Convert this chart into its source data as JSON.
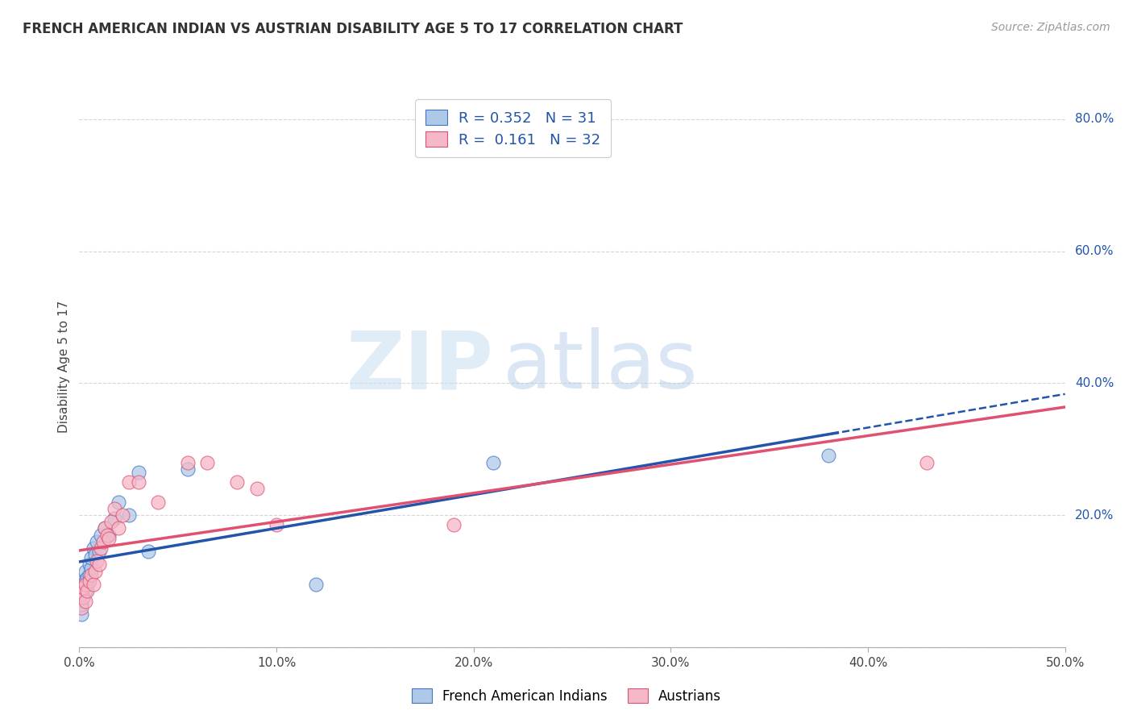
{
  "title": "FRENCH AMERICAN INDIAN VS AUSTRIAN DISABILITY AGE 5 TO 17 CORRELATION CHART",
  "source": "Source: ZipAtlas.com",
  "ylabel": "Disability Age 5 to 17",
  "xlim": [
    0.0,
    0.5
  ],
  "ylim": [
    0.0,
    0.85
  ],
  "xticks": [
    0.0,
    0.1,
    0.2,
    0.3,
    0.4,
    0.5
  ],
  "yticks": [
    0.0,
    0.2,
    0.4,
    0.6,
    0.8
  ],
  "ytick_labels": [
    "",
    "20.0%",
    "40.0%",
    "60.0%",
    "80.0%"
  ],
  "xtick_labels": [
    "0.0%",
    "10.0%",
    "20.0%",
    "30.0%",
    "40.0%",
    "50.0%"
  ],
  "grid_color": "#cccccc",
  "background_color": "#ffffff",
  "blue_scatter_color": "#aec9e8",
  "blue_edge_color": "#4472c4",
  "pink_scatter_color": "#f4b8c8",
  "pink_edge_color": "#e05070",
  "blue_line_color": "#2255aa",
  "pink_line_color": "#e05070",
  "watermark_zip": "ZIP",
  "watermark_atlas": "atlas",
  "french_x": [
    0.001,
    0.001,
    0.001,
    0.002,
    0.002,
    0.002,
    0.003,
    0.003,
    0.003,
    0.004,
    0.004,
    0.005,
    0.005,
    0.006,
    0.006,
    0.007,
    0.008,
    0.009,
    0.01,
    0.011,
    0.013,
    0.015,
    0.018,
    0.02,
    0.025,
    0.03,
    0.035,
    0.055,
    0.12,
    0.21,
    0.38
  ],
  "french_y": [
    0.05,
    0.065,
    0.08,
    0.075,
    0.09,
    0.1,
    0.085,
    0.1,
    0.115,
    0.095,
    0.105,
    0.11,
    0.125,
    0.12,
    0.135,
    0.15,
    0.14,
    0.16,
    0.145,
    0.17,
    0.18,
    0.17,
    0.195,
    0.22,
    0.2,
    0.265,
    0.145,
    0.27,
    0.095,
    0.28,
    0.29
  ],
  "austrian_x": [
    0.001,
    0.001,
    0.002,
    0.002,
    0.003,
    0.003,
    0.004,
    0.005,
    0.006,
    0.007,
    0.008,
    0.009,
    0.01,
    0.011,
    0.012,
    0.013,
    0.014,
    0.015,
    0.016,
    0.018,
    0.02,
    0.022,
    0.025,
    0.03,
    0.04,
    0.055,
    0.065,
    0.08,
    0.09,
    0.1,
    0.19,
    0.43
  ],
  "austrian_y": [
    0.06,
    0.08,
    0.075,
    0.09,
    0.07,
    0.095,
    0.085,
    0.1,
    0.11,
    0.095,
    0.115,
    0.13,
    0.125,
    0.15,
    0.16,
    0.18,
    0.17,
    0.165,
    0.19,
    0.21,
    0.18,
    0.2,
    0.25,
    0.25,
    0.22,
    0.28,
    0.28,
    0.25,
    0.24,
    0.185,
    0.185,
    0.28
  ]
}
